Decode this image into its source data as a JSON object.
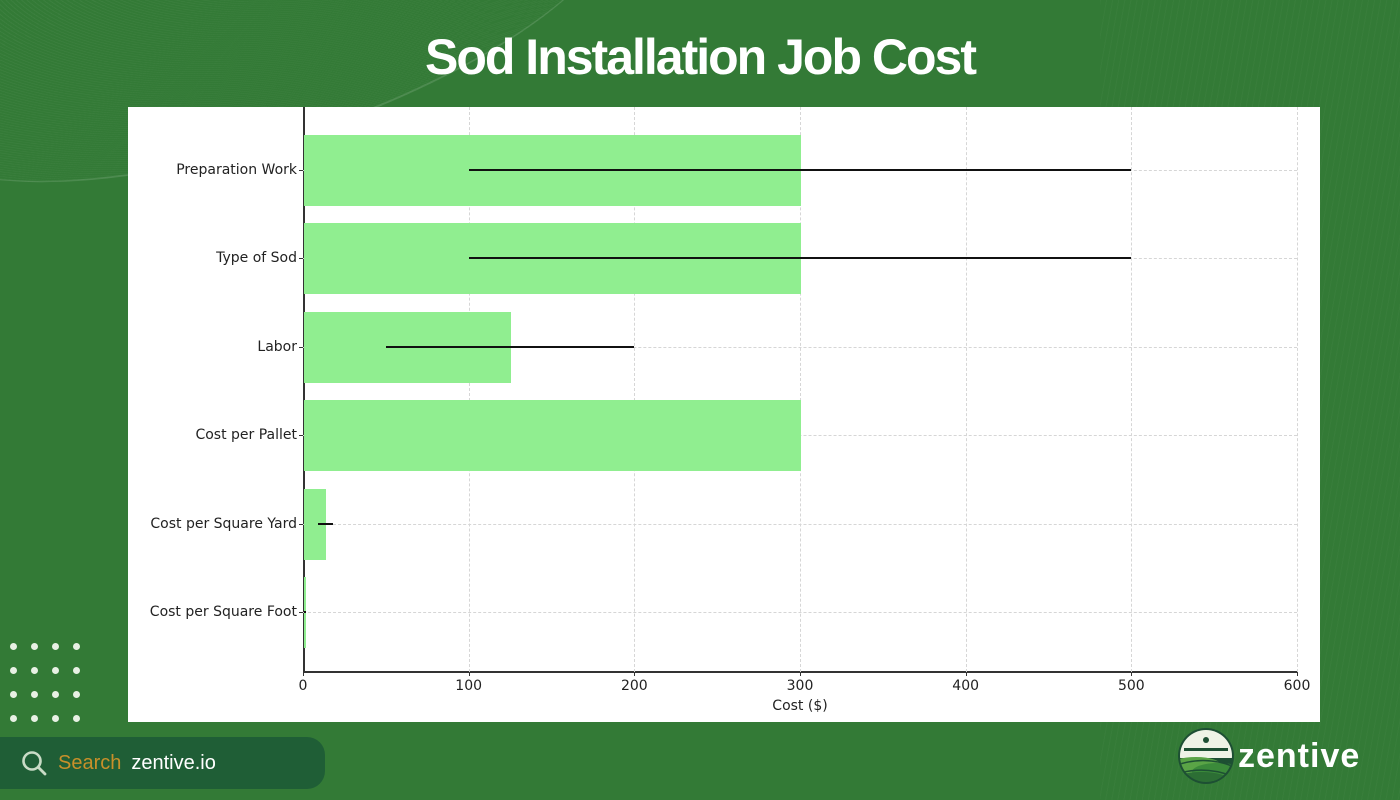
{
  "title": "Sod Installation Job Cost",
  "chart_data": {
    "type": "bar",
    "orientation": "horizontal",
    "title": "Sod Installation Job Cost",
    "xlabel": "Cost ($)",
    "ylabel": "",
    "categories": [
      "Preparation Work",
      "Type of Sod",
      "Labor",
      "Cost per Pallet",
      "Cost per Square Yard",
      "Cost per Square Foot"
    ],
    "values": [
      300,
      300,
      125,
      300,
      13.5,
      1.25
    ],
    "error_ranges": [
      [
        100,
        500
      ],
      [
        100,
        500
      ],
      [
        50,
        200
      ],
      null,
      [
        9,
        18
      ],
      [
        0.5,
        2
      ]
    ],
    "xlim": [
      0,
      600
    ],
    "xticks": [
      0,
      100,
      200,
      300,
      400,
      500,
      600
    ],
    "bar_color": "#90ee90",
    "errbar_color": "#111111",
    "grid": true,
    "legend": null
  },
  "axis": {
    "xticks": [
      "0",
      "100",
      "200",
      "300",
      "400",
      "500",
      "600"
    ],
    "xlabel": "Cost ($)"
  },
  "footer": {
    "search_label": "Search",
    "search_site": "zentive.io",
    "brand_name": "zentive"
  },
  "colors": {
    "background": "#337a36",
    "search_pill": "#1f5e36",
    "search_label": "#c8902a",
    "bar": "#90ee90"
  }
}
